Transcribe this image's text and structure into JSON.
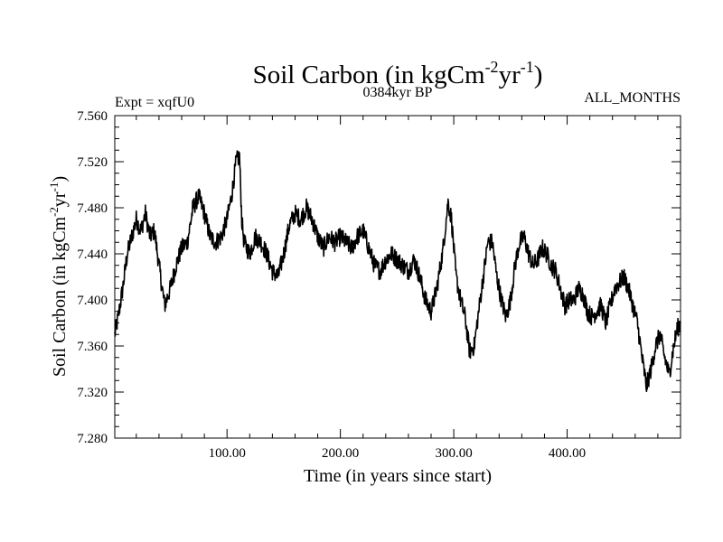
{
  "chart_data": {
    "type": "line",
    "title_main": "Soil Carbon (in kgCm",
    "title_sup1": "-2",
    "title_mid": "yr",
    "title_sup2": "-1",
    "title_close": ")",
    "subtitle_left": "Expt = xqfU0",
    "subtitle_center": "0384kyr BP",
    "subtitle_right": "ALL_MONTHS",
    "xlabel": "Time (in years since start)",
    "ylabel_main": "Soil Carbon (in kgCm",
    "ylabel_sup1": "-2",
    "ylabel_mid": "yr",
    "ylabel_sup2": "-1",
    "ylabel_close": ")",
    "xlim": [
      1,
      500
    ],
    "ylim": [
      7.28,
      7.56
    ],
    "x_ticks": [
      100,
      200,
      300,
      400
    ],
    "x_tick_labels": [
      "100.00",
      "200.00",
      "300.00",
      "400.00"
    ],
    "y_ticks": [
      7.28,
      7.32,
      7.36,
      7.4,
      7.44,
      7.48,
      7.52,
      7.56
    ],
    "y_tick_labels": [
      "7.280",
      "7.320",
      "7.360",
      "7.400",
      "7.440",
      "7.480",
      "7.520",
      "7.560"
    ],
    "grid": false,
    "series": [
      {
        "name": "Soil Carbon",
        "color": "#000000",
        "points": [
          [
            1,
            7.37
          ],
          [
            4,
            7.385
          ],
          [
            8,
            7.41
          ],
          [
            12,
            7.44
          ],
          [
            16,
            7.455
          ],
          [
            20,
            7.47
          ],
          [
            24,
            7.46
          ],
          [
            28,
            7.475
          ],
          [
            32,
            7.455
          ],
          [
            36,
            7.46
          ],
          [
            40,
            7.43
          ],
          [
            45,
            7.395
          ],
          [
            50,
            7.41
          ],
          [
            55,
            7.43
          ],
          [
            60,
            7.445
          ],
          [
            65,
            7.45
          ],
          [
            70,
            7.48
          ],
          [
            75,
            7.49
          ],
          [
            80,
            7.475
          ],
          [
            85,
            7.455
          ],
          [
            90,
            7.45
          ],
          [
            95,
            7.455
          ],
          [
            100,
            7.47
          ],
          [
            104,
            7.49
          ],
          [
            108,
            7.52
          ],
          [
            111,
            7.525
          ],
          [
            113,
            7.47
          ],
          [
            115,
            7.45
          ],
          [
            120,
            7.44
          ],
          [
            125,
            7.455
          ],
          [
            130,
            7.45
          ],
          [
            135,
            7.44
          ],
          [
            140,
            7.425
          ],
          [
            145,
            7.42
          ],
          [
            150,
            7.44
          ],
          [
            155,
            7.465
          ],
          [
            160,
            7.475
          ],
          [
            165,
            7.47
          ],
          [
            170,
            7.48
          ],
          [
            175,
            7.47
          ],
          [
            180,
            7.455
          ],
          [
            185,
            7.445
          ],
          [
            190,
            7.455
          ],
          [
            195,
            7.45
          ],
          [
            200,
            7.455
          ],
          [
            205,
            7.45
          ],
          [
            210,
            7.445
          ],
          [
            215,
            7.455
          ],
          [
            220,
            7.46
          ],
          [
            225,
            7.445
          ],
          [
            230,
            7.43
          ],
          [
            235,
            7.425
          ],
          [
            240,
            7.435
          ],
          [
            245,
            7.44
          ],
          [
            250,
            7.435
          ],
          [
            255,
            7.43
          ],
          [
            260,
            7.425
          ],
          [
            265,
            7.435
          ],
          [
            270,
            7.42
          ],
          [
            275,
            7.4
          ],
          [
            280,
            7.39
          ],
          [
            285,
            7.41
          ],
          [
            290,
            7.44
          ],
          [
            295,
            7.485
          ],
          [
            298,
            7.47
          ],
          [
            302,
            7.42
          ],
          [
            306,
            7.4
          ],
          [
            310,
            7.385
          ],
          [
            314,
            7.355
          ],
          [
            318,
            7.36
          ],
          [
            322,
            7.39
          ],
          [
            326,
            7.42
          ],
          [
            330,
            7.45
          ],
          [
            334,
            7.45
          ],
          [
            338,
            7.42
          ],
          [
            342,
            7.4
          ],
          [
            346,
            7.385
          ],
          [
            350,
            7.4
          ],
          [
            354,
            7.43
          ],
          [
            358,
            7.45
          ],
          [
            362,
            7.455
          ],
          [
            366,
            7.44
          ],
          [
            370,
            7.43
          ],
          [
            374,
            7.435
          ],
          [
            378,
            7.445
          ],
          [
            382,
            7.44
          ],
          [
            386,
            7.43
          ],
          [
            390,
            7.425
          ],
          [
            394,
            7.41
          ],
          [
            398,
            7.395
          ],
          [
            402,
            7.4
          ],
          [
            406,
            7.4
          ],
          [
            410,
            7.41
          ],
          [
            414,
            7.405
          ],
          [
            418,
            7.39
          ],
          [
            422,
            7.385
          ],
          [
            426,
            7.39
          ],
          [
            430,
            7.395
          ],
          [
            434,
            7.38
          ],
          [
            438,
            7.395
          ],
          [
            442,
            7.41
          ],
          [
            446,
            7.415
          ],
          [
            450,
            7.42
          ],
          [
            454,
            7.41
          ],
          [
            458,
            7.395
          ],
          [
            462,
            7.38
          ],
          [
            466,
            7.35
          ],
          [
            470,
            7.325
          ],
          [
            474,
            7.34
          ],
          [
            478,
            7.36
          ],
          [
            482,
            7.37
          ],
          [
            486,
            7.35
          ],
          [
            490,
            7.335
          ],
          [
            494,
            7.36
          ],
          [
            497,
            7.375
          ],
          [
            500,
            7.38
          ]
        ]
      }
    ]
  }
}
